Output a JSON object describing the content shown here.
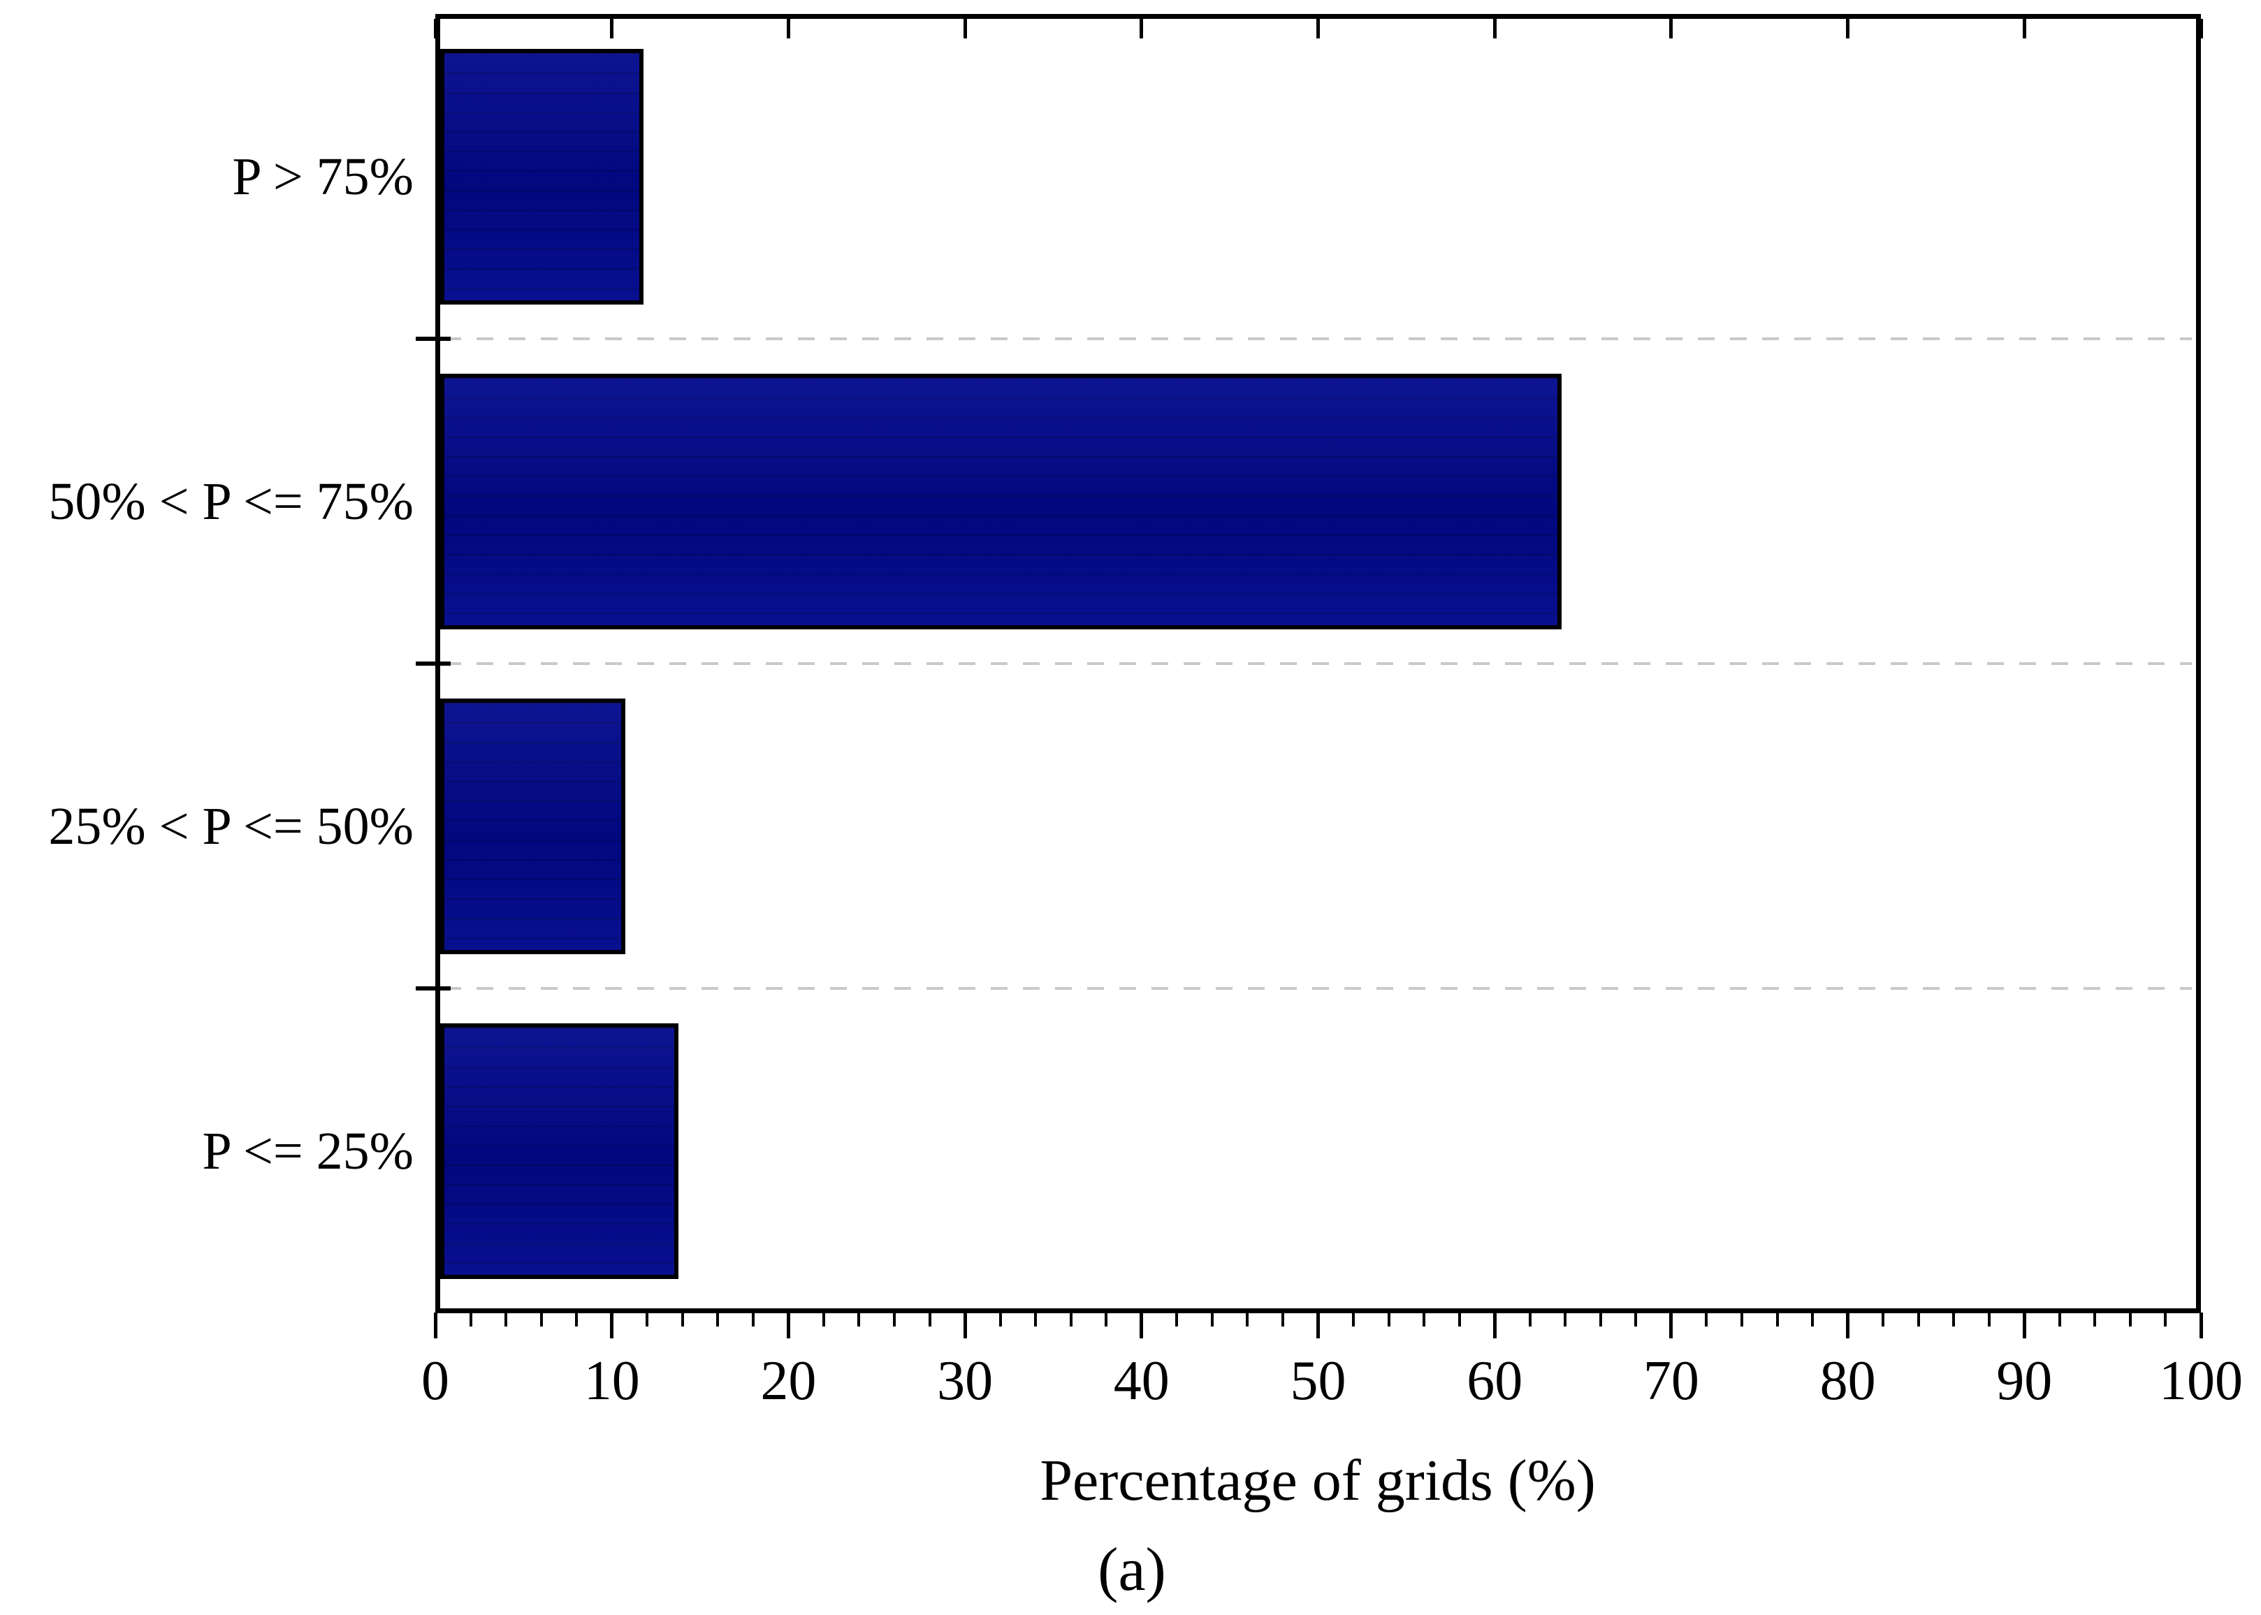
{
  "figure": {
    "caption": "(a)"
  },
  "chart_data": {
    "type": "bar",
    "orientation": "horizontal",
    "title": "",
    "xlabel": "Percentage of grids (%)",
    "ylabel": "",
    "categories": [
      "P > 75%",
      "50% < P <= 75%",
      "25% < P <= 50%",
      "P <= 25%"
    ],
    "values": [
      11.5,
      63.5,
      10.5,
      13.5
    ],
    "xlim": [
      0,
      100
    ],
    "x_major_ticks": [
      0,
      10,
      20,
      30,
      40,
      50,
      60,
      70,
      80,
      90,
      100
    ],
    "x_minor_tick_step": 2,
    "bar_color": "#01088C",
    "bar_border_color": "#000000",
    "axis_color": "#000000",
    "gridline_color": "#c9c9c9",
    "gridline_style": "dashed horizontal separators between category bands",
    "legend": "none"
  }
}
